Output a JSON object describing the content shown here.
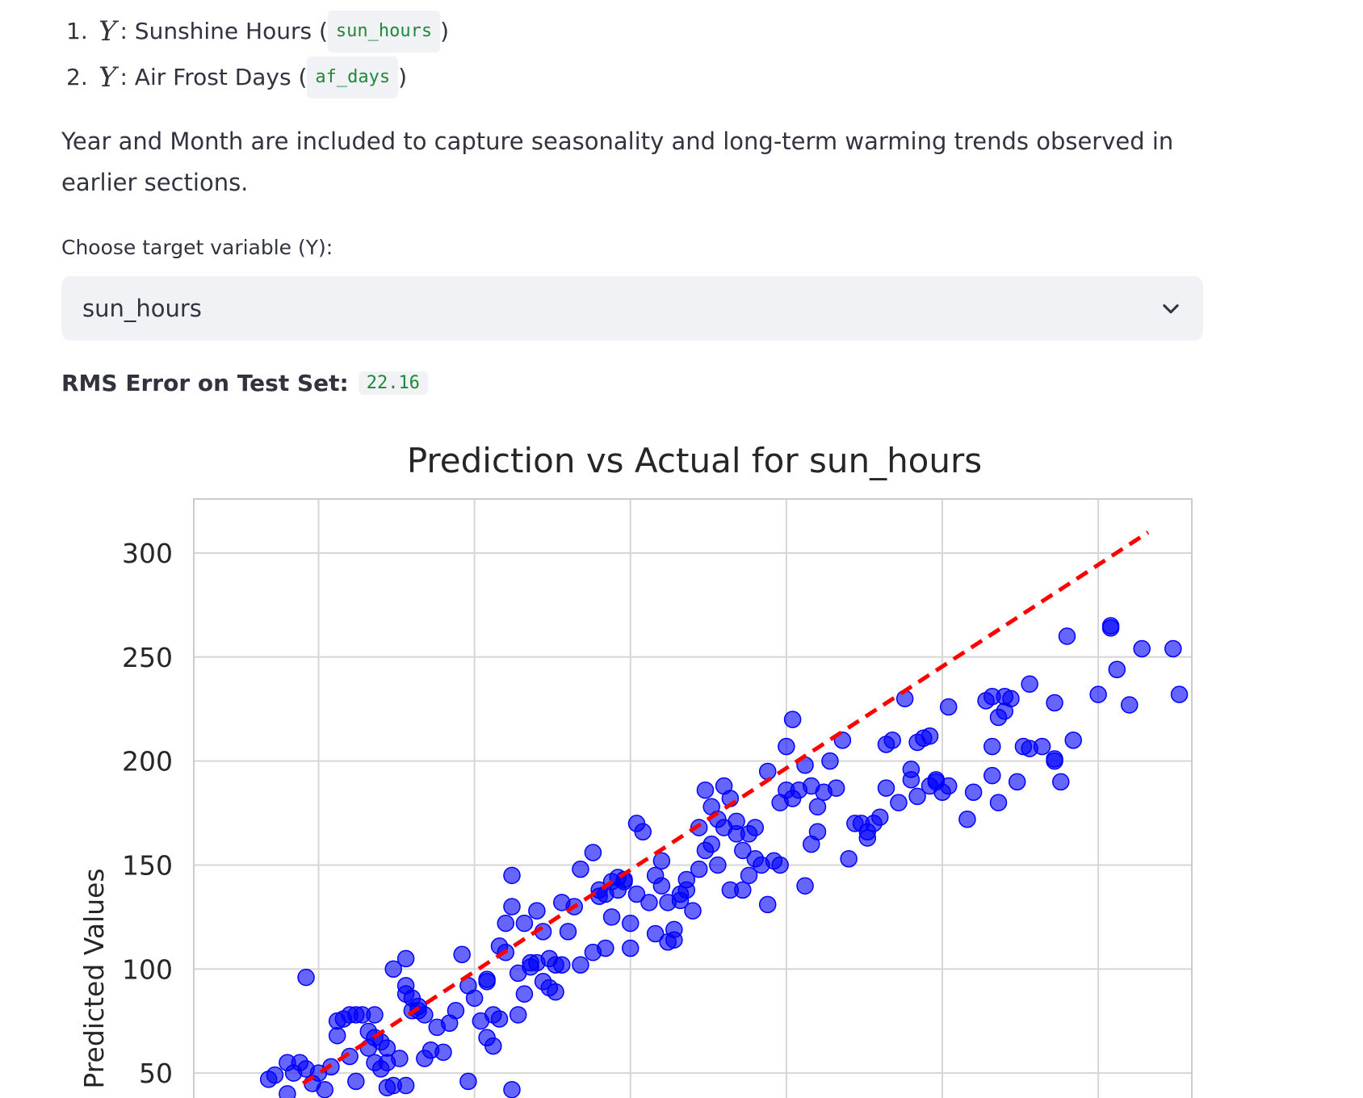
{
  "targets": [
    {
      "num": "1.",
      "var": "Y",
      "sep": ": ",
      "label": "Sunshine Hours (",
      "code": "sun_hours",
      "close": ")"
    },
    {
      "num": "2.",
      "var": "Y",
      "sep": ": ",
      "label": "Air Frost Days (",
      "code": "af_days",
      "close": ")"
    }
  ],
  "paragraph": "Year and Month are included to capture seasonality and long-term warming trends observed in earlier sections.",
  "select": {
    "label": "Choose target variable (Y):",
    "value": "sun_hours",
    "icon": "chevron-down-icon"
  },
  "rms": {
    "label": "RMS Error on Test Set:",
    "value": "22.16"
  },
  "chart_data": {
    "type": "scatter",
    "title": "Prediction vs Actual for sun_hours",
    "ylabel": "Predicted Values",
    "xlabel": "",
    "yticks": [
      50,
      100,
      150,
      200,
      250,
      300
    ],
    "ylim": [
      38,
      326
    ],
    "xlim": [
      10,
      330
    ],
    "grid": true,
    "point_color": "#0000ff",
    "line_color": "#ff0000",
    "reference_line": {
      "x": [
        45,
        316
      ],
      "y": [
        45,
        310
      ],
      "style": "dashed"
    },
    "points": [
      [
        34,
        47
      ],
      [
        36,
        49
      ],
      [
        40,
        55
      ],
      [
        42,
        50
      ],
      [
        44,
        55
      ],
      [
        46,
        52
      ],
      [
        46,
        96
      ],
      [
        48,
        45
      ],
      [
        50,
        50
      ],
      [
        54,
        53
      ],
      [
        56,
        75
      ],
      [
        56,
        68
      ],
      [
        58,
        76
      ],
      [
        60,
        58
      ],
      [
        60,
        78
      ],
      [
        62,
        78
      ],
      [
        64,
        78
      ],
      [
        66,
        62
      ],
      [
        66,
        70
      ],
      [
        68,
        55
      ],
      [
        68,
        78
      ],
      [
        68,
        67
      ],
      [
        70,
        52
      ],
      [
        70,
        65
      ],
      [
        72,
        62
      ],
      [
        72,
        55
      ],
      [
        74,
        100
      ],
      [
        74,
        44
      ],
      [
        76,
        57
      ],
      [
        78,
        105
      ],
      [
        78,
        92
      ],
      [
        78,
        88
      ],
      [
        80,
        86
      ],
      [
        80,
        80
      ],
      [
        82,
        80
      ],
      [
        82,
        82
      ],
      [
        84,
        78
      ],
      [
        84,
        57
      ],
      [
        86,
        61
      ],
      [
        88,
        72
      ],
      [
        90,
        60
      ],
      [
        92,
        74
      ],
      [
        94,
        80
      ],
      [
        96,
        107
      ],
      [
        98,
        92
      ],
      [
        100,
        86
      ],
      [
        102,
        75
      ],
      [
        104,
        94
      ],
      [
        104,
        95
      ],
      [
        104,
        67
      ],
      [
        106,
        78
      ],
      [
        106,
        63
      ],
      [
        108,
        76
      ],
      [
        108,
        111
      ],
      [
        110,
        122
      ],
      [
        110,
        108
      ],
      [
        112,
        130
      ],
      [
        112,
        145
      ],
      [
        114,
        98
      ],
      [
        114,
        78
      ],
      [
        116,
        122
      ],
      [
        116,
        88
      ],
      [
        118,
        101
      ],
      [
        118,
        103
      ],
      [
        120,
        103
      ],
      [
        120,
        128
      ],
      [
        122,
        94
      ],
      [
        122,
        118
      ],
      [
        124,
        91
      ],
      [
        124,
        105
      ],
      [
        126,
        102
      ],
      [
        126,
        89
      ],
      [
        128,
        102
      ],
      [
        128,
        132
      ],
      [
        130,
        118
      ],
      [
        132,
        130
      ],
      [
        134,
        102
      ],
      [
        134,
        148
      ],
      [
        138,
        108
      ],
      [
        138,
        156
      ],
      [
        140,
        135
      ],
      [
        140,
        138
      ],
      [
        142,
        110
      ],
      [
        142,
        136
      ],
      [
        144,
        125
      ],
      [
        144,
        142
      ],
      [
        146,
        144
      ],
      [
        146,
        138
      ],
      [
        148,
        143
      ],
      [
        148,
        142
      ],
      [
        150,
        122
      ],
      [
        150,
        110
      ],
      [
        152,
        136
      ],
      [
        152,
        170
      ],
      [
        154,
        166
      ],
      [
        156,
        132
      ],
      [
        158,
        145
      ],
      [
        158,
        117
      ],
      [
        160,
        140
      ],
      [
        160,
        152
      ],
      [
        162,
        132
      ],
      [
        162,
        113
      ],
      [
        164,
        114
      ],
      [
        164,
        119
      ],
      [
        166,
        133
      ],
      [
        166,
        136
      ],
      [
        168,
        143
      ],
      [
        168,
        138
      ],
      [
        170,
        128
      ],
      [
        172,
        168
      ],
      [
        172,
        148
      ],
      [
        174,
        186
      ],
      [
        174,
        157
      ],
      [
        176,
        178
      ],
      [
        176,
        160
      ],
      [
        178,
        172
      ],
      [
        178,
        150
      ],
      [
        180,
        188
      ],
      [
        180,
        168
      ],
      [
        182,
        182
      ],
      [
        182,
        138
      ],
      [
        184,
        171
      ],
      [
        184,
        165
      ],
      [
        186,
        138
      ],
      [
        186,
        157
      ],
      [
        188,
        145
      ],
      [
        188,
        165
      ],
      [
        190,
        153
      ],
      [
        190,
        168
      ],
      [
        192,
        150
      ],
      [
        194,
        195
      ],
      [
        194,
        131
      ],
      [
        196,
        152
      ],
      [
        198,
        180
      ],
      [
        198,
        150
      ],
      [
        200,
        186
      ],
      [
        200,
        207
      ],
      [
        202,
        220
      ],
      [
        202,
        182
      ],
      [
        204,
        186
      ],
      [
        206,
        198
      ],
      [
        206,
        140
      ],
      [
        208,
        188
      ],
      [
        208,
        160
      ],
      [
        210,
        178
      ],
      [
        210,
        166
      ],
      [
        212,
        185
      ],
      [
        214,
        200
      ],
      [
        216,
        187
      ],
      [
        218,
        210
      ],
      [
        220,
        153
      ],
      [
        222,
        170
      ],
      [
        224,
        170
      ],
      [
        226,
        163
      ],
      [
        226,
        166
      ],
      [
        228,
        170
      ],
      [
        230,
        173
      ],
      [
        232,
        187
      ],
      [
        232,
        208
      ],
      [
        234,
        210
      ],
      [
        236,
        180
      ],
      [
        238,
        230
      ],
      [
        240,
        191
      ],
      [
        240,
        196
      ],
      [
        242,
        183
      ],
      [
        242,
        209
      ],
      [
        244,
        211
      ],
      [
        246,
        212
      ],
      [
        246,
        188
      ],
      [
        248,
        190
      ],
      [
        248,
        191
      ],
      [
        250,
        185
      ],
      [
        252,
        188
      ],
      [
        252,
        226
      ],
      [
        258,
        172
      ],
      [
        260,
        185
      ],
      [
        264,
        229
      ],
      [
        266,
        231
      ],
      [
        266,
        207
      ],
      [
        266,
        193
      ],
      [
        268,
        180
      ],
      [
        268,
        221
      ],
      [
        270,
        224
      ],
      [
        270,
        231
      ],
      [
        272,
        230
      ],
      [
        274,
        190
      ],
      [
        276,
        207
      ],
      [
        278,
        206
      ],
      [
        278,
        237
      ],
      [
        282,
        207
      ],
      [
        286,
        228
      ],
      [
        286,
        200
      ],
      [
        286,
        201
      ],
      [
        288,
        190
      ],
      [
        290,
        260
      ],
      [
        292,
        210
      ],
      [
        300,
        232
      ],
      [
        304,
        264
      ],
      [
        304,
        265
      ],
      [
        306,
        244
      ],
      [
        310,
        227
      ],
      [
        314,
        254
      ],
      [
        324,
        254
      ],
      [
        326,
        232
      ],
      [
        40,
        40
      ],
      [
        52,
        42
      ],
      [
        62,
        46
      ],
      [
        72,
        43
      ],
      [
        78,
        44
      ],
      [
        98,
        46
      ],
      [
        112,
        42
      ]
    ]
  }
}
